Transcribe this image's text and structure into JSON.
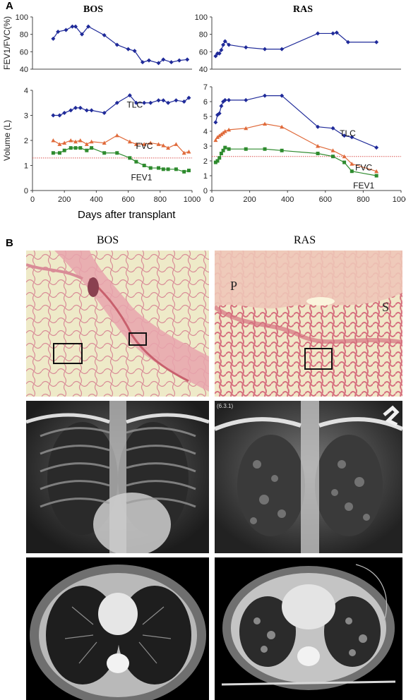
{
  "panel_a": {
    "letter": "A",
    "bos_title": "BOS",
    "ras_title": "RAS",
    "xlabel": "Days after transplant"
  },
  "panel_b": {
    "letter": "B",
    "bos_title": "BOS",
    "ras_title": "RAS",
    "histo_label_p": "P",
    "histo_label_s": "S",
    "xray_marker": "(6.3.1)"
  },
  "chart_data": [
    {
      "id": "bos_ratio",
      "type": "line",
      "title": "BOS",
      "ylabel": "FEV1/FVC(%)",
      "xlim": [
        0,
        1000
      ],
      "ylim": [
        40,
        100
      ],
      "yticks": [
        "40",
        "60",
        "80",
        "100"
      ],
      "series": [
        {
          "marker": "diamond",
          "color": "#1f2a99",
          "x": [
            130,
            160,
            210,
            250,
            270,
            310,
            350,
            450,
            530,
            600,
            640,
            690,
            730,
            790,
            820,
            870,
            920,
            970
          ],
          "y": [
            75,
            83,
            85,
            89,
            89,
            80,
            89,
            79,
            68,
            63,
            61,
            48,
            50,
            47,
            51,
            48,
            50,
            51
          ]
        }
      ]
    },
    {
      "id": "ras_ratio",
      "type": "line",
      "title": "RAS",
      "ylabel": "",
      "xlim": [
        0,
        1000
      ],
      "ylim": [
        40,
        100
      ],
      "yticks": [
        "40",
        "60",
        "80",
        "100"
      ],
      "series": [
        {
          "marker": "diamond",
          "color": "#1f2a99",
          "x": [
            20,
            30,
            40,
            50,
            60,
            70,
            90,
            180,
            280,
            370,
            560,
            640,
            660,
            720,
            870
          ],
          "y": [
            55,
            58,
            58,
            62,
            68,
            72,
            68,
            65,
            63,
            63,
            81,
            81,
            82,
            71,
            71
          ]
        }
      ]
    },
    {
      "id": "bos_volume",
      "type": "line",
      "ylabel": "Volume (L)",
      "xlim": [
        0,
        1000
      ],
      "ylim": [
        0,
        4
      ],
      "xticks": [
        "0",
        "200",
        "400",
        "600",
        "800",
        "1000"
      ],
      "yticks": [
        "0",
        "1",
        "2",
        "3",
        "4"
      ],
      "reference_line": 1.3,
      "series": [
        {
          "name": "TLC",
          "marker": "diamond",
          "color": "#1f2a99",
          "x": [
            130,
            170,
            200,
            240,
            270,
            300,
            340,
            370,
            450,
            530,
            610,
            650,
            700,
            740,
            790,
            820,
            850,
            900,
            950,
            980
          ],
          "y": [
            3.0,
            3.0,
            3.1,
            3.2,
            3.3,
            3.3,
            3.2,
            3.2,
            3.1,
            3.5,
            3.8,
            3.5,
            3.5,
            3.5,
            3.6,
            3.6,
            3.5,
            3.6,
            3.55,
            3.7
          ]
        },
        {
          "name": "FVC",
          "marker": "triangle",
          "color": "#e06a3a",
          "x": [
            130,
            170,
            200,
            240,
            270,
            300,
            340,
            370,
            450,
            530,
            610,
            650,
            700,
            740,
            790,
            820,
            850,
            900,
            950,
            980
          ],
          "y": [
            2.0,
            1.85,
            1.9,
            2.0,
            1.95,
            2.0,
            1.85,
            1.95,
            1.9,
            2.2,
            1.95,
            1.85,
            1.85,
            1.9,
            1.85,
            1.8,
            1.7,
            1.85,
            1.5,
            1.55
          ]
        },
        {
          "name": "FEV1",
          "marker": "square",
          "color": "#2e8b2e",
          "x": [
            130,
            170,
            200,
            240,
            270,
            300,
            340,
            370,
            450,
            530,
            610,
            650,
            700,
            740,
            790,
            820,
            850,
            900,
            950,
            980
          ],
          "y": [
            1.5,
            1.5,
            1.6,
            1.7,
            1.7,
            1.7,
            1.6,
            1.7,
            1.5,
            1.5,
            1.3,
            1.15,
            1.0,
            0.9,
            0.9,
            0.85,
            0.85,
            0.85,
            0.75,
            0.8
          ]
        }
      ]
    },
    {
      "id": "ras_volume",
      "type": "line",
      "ylabel": "",
      "xlim": [
        0,
        1000
      ],
      "ylim": [
        0,
        7
      ],
      "xticks": [
        "0",
        "200",
        "400",
        "600",
        "800",
        "1000"
      ],
      "yticks": [
        "0",
        "1",
        "2",
        "3",
        "4",
        "5",
        "6",
        "7"
      ],
      "reference_line": 2.3,
      "series": [
        {
          "name": "TLC",
          "marker": "diamond",
          "color": "#1f2a99",
          "x": [
            20,
            30,
            40,
            50,
            60,
            70,
            90,
            180,
            280,
            370,
            560,
            640,
            700,
            740,
            870
          ],
          "y": [
            4.6,
            5.1,
            5.2,
            5.7,
            6.0,
            6.1,
            6.1,
            6.1,
            6.4,
            6.4,
            4.3,
            4.2,
            3.7,
            3.6,
            2.9
          ]
        },
        {
          "name": "FVC",
          "marker": "triangle",
          "color": "#e06a3a",
          "x": [
            20,
            30,
            40,
            50,
            60,
            70,
            90,
            180,
            280,
            370,
            560,
            640,
            700,
            740,
            870
          ],
          "y": [
            3.4,
            3.6,
            3.7,
            3.8,
            3.9,
            4.0,
            4.1,
            4.2,
            4.5,
            4.3,
            3.0,
            2.7,
            2.3,
            1.8,
            1.3
          ]
        },
        {
          "name": "FEV1",
          "marker": "square",
          "color": "#2e8b2e",
          "x": [
            20,
            30,
            40,
            50,
            60,
            70,
            90,
            180,
            280,
            370,
            560,
            640,
            700,
            740,
            870
          ],
          "y": [
            1.9,
            2.0,
            2.2,
            2.5,
            2.7,
            2.9,
            2.8,
            2.8,
            2.8,
            2.7,
            2.5,
            2.3,
            1.9,
            1.3,
            1.0
          ]
        }
      ]
    }
  ]
}
